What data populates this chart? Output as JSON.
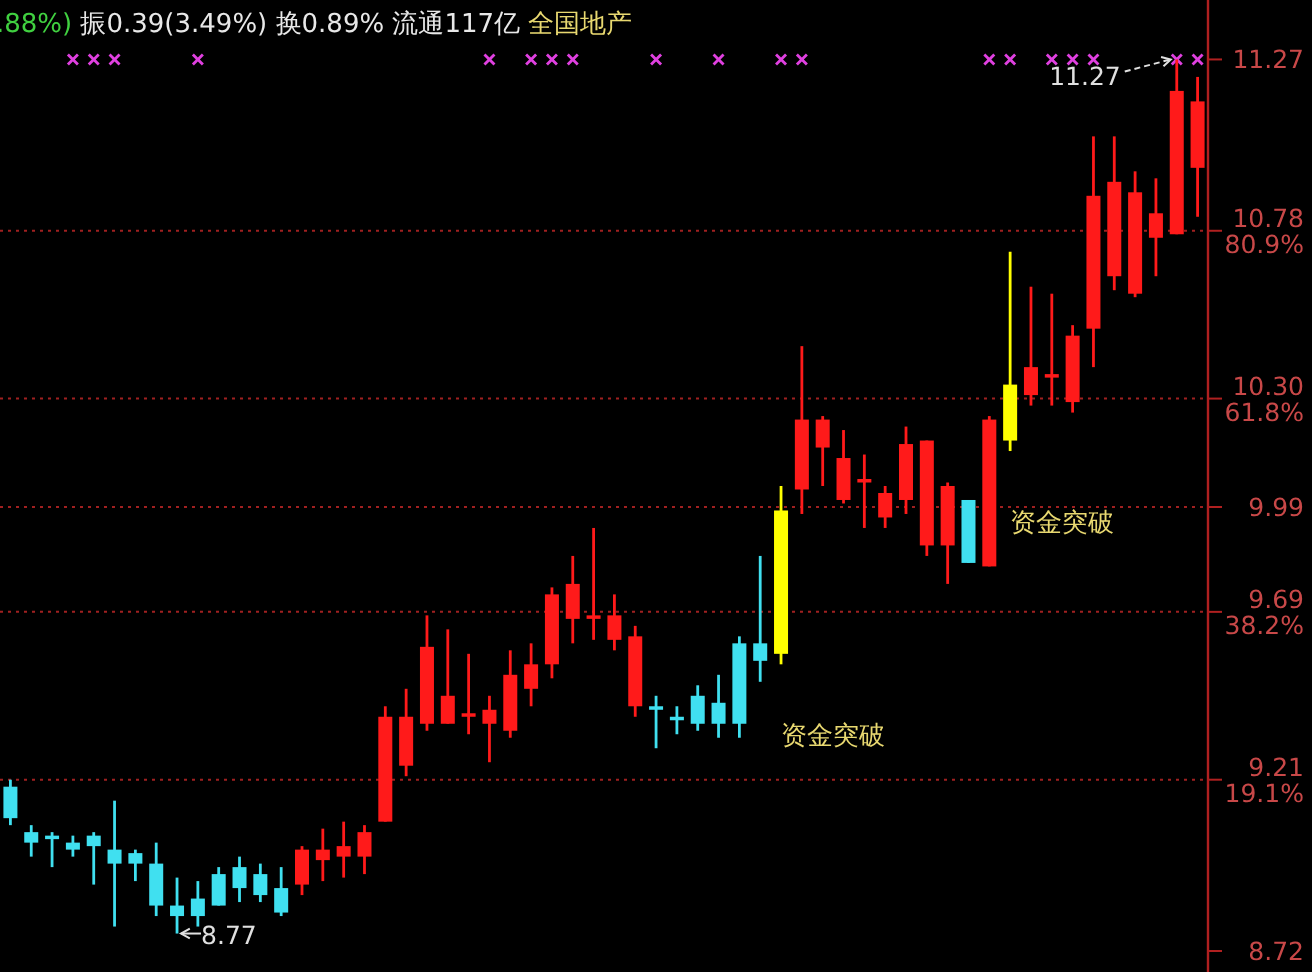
{
  "chart_data": {
    "type": "candlestick",
    "title": ".88%) 振0.39(3.49%) 换0.89% 流通117亿 全国地产",
    "categories": [
      null,
      null,
      null,
      null,
      null,
      null,
      null,
      null,
      null,
      null,
      null,
      null,
      null,
      null,
      null,
      null,
      null,
      null,
      null,
      null,
      null,
      null,
      null,
      null,
      null,
      null,
      null,
      null,
      null,
      null,
      null,
      null,
      null,
      null,
      null,
      null,
      null,
      null,
      null,
      null,
      null,
      null,
      null,
      null,
      null,
      null,
      null,
      null,
      null,
      null,
      null,
      null,
      null,
      null,
      null,
      null,
      null,
      null
    ],
    "ohlc": [
      [
        9.19,
        9.21,
        9.08,
        9.1
      ],
      [
        9.06,
        9.08,
        8.99,
        9.03
      ],
      [
        9.05,
        9.06,
        8.96,
        9.04
      ],
      [
        9.03,
        9.05,
        8.99,
        9.01
      ],
      [
        9.05,
        9.06,
        8.91,
        9.02
      ],
      [
        9.01,
        9.15,
        8.79,
        8.97
      ],
      [
        9.0,
        9.01,
        8.92,
        8.97
      ],
      [
        8.97,
        9.03,
        8.82,
        8.85
      ],
      [
        8.85,
        8.93,
        8.77,
        8.82
      ],
      [
        8.87,
        8.92,
        8.79,
        8.82
      ],
      [
        8.94,
        8.96,
        8.85,
        8.85
      ],
      [
        8.96,
        8.99,
        8.86,
        8.9
      ],
      [
        8.94,
        8.97,
        8.86,
        8.88
      ],
      [
        8.9,
        8.96,
        8.82,
        8.83
      ],
      [
        8.91,
        9.02,
        8.88,
        9.01
      ],
      [
        8.98,
        9.07,
        8.92,
        9.01
      ],
      [
        8.99,
        9.09,
        8.93,
        9.02
      ],
      [
        8.99,
        9.08,
        8.94,
        9.06
      ],
      [
        9.09,
        9.42,
        9.09,
        9.39
      ],
      [
        9.25,
        9.47,
        9.22,
        9.39
      ],
      [
        9.37,
        9.68,
        9.35,
        9.59
      ],
      [
        9.37,
        9.64,
        9.37,
        9.45
      ],
      [
        9.39,
        9.57,
        9.34,
        9.4
      ],
      [
        9.37,
        9.45,
        9.26,
        9.41
      ],
      [
        9.35,
        9.58,
        9.33,
        9.51
      ],
      [
        9.47,
        9.6,
        9.42,
        9.54
      ],
      [
        9.54,
        9.76,
        9.5,
        9.74
      ],
      [
        9.67,
        9.85,
        9.6,
        9.77
      ],
      [
        9.67,
        9.93,
        9.61,
        9.68
      ],
      [
        9.61,
        9.74,
        9.58,
        9.68
      ],
      [
        9.42,
        9.65,
        9.39,
        9.62
      ],
      [
        9.42,
        9.45,
        9.3,
        9.41
      ],
      [
        9.39,
        9.42,
        9.34,
        9.38
      ],
      [
        9.45,
        9.48,
        9.35,
        9.37
      ],
      [
        9.43,
        9.51,
        9.33,
        9.37
      ],
      [
        9.6,
        9.62,
        9.33,
        9.37
      ],
      [
        9.6,
        9.85,
        9.49,
        9.55
      ],
      [
        9.57,
        10.05,
        9.54,
        9.98
      ],
      [
        10.04,
        10.45,
        9.97,
        10.24
      ],
      [
        10.16,
        10.25,
        10.05,
        10.24
      ],
      [
        10.01,
        10.21,
        10.0,
        10.13
      ],
      [
        10.06,
        10.14,
        9.93,
        10.07
      ],
      [
        9.96,
        10.05,
        9.93,
        10.03
      ],
      [
        10.01,
        10.22,
        9.97,
        10.17
      ],
      [
        9.88,
        10.18,
        9.85,
        10.18
      ],
      [
        9.88,
        10.06,
        9.77,
        10.05
      ],
      [
        10.01,
        10.01,
        9.83,
        9.83
      ],
      [
        9.82,
        10.25,
        9.82,
        10.24
      ],
      [
        10.18,
        10.72,
        10.15,
        10.34
      ],
      [
        10.31,
        10.62,
        10.28,
        10.39
      ],
      [
        10.36,
        10.6,
        10.28,
        10.37
      ],
      [
        10.29,
        10.51,
        10.26,
        10.48
      ],
      [
        10.5,
        11.05,
        10.39,
        10.88
      ],
      [
        10.65,
        11.05,
        10.61,
        10.92
      ],
      [
        10.6,
        10.95,
        10.59,
        10.89
      ],
      [
        10.76,
        10.93,
        10.65,
        10.83
      ],
      [
        10.77,
        11.27,
        10.77,
        11.18
      ],
      [
        10.96,
        11.22,
        10.82,
        11.15
      ]
    ],
    "colors": [
      "#40e0f0",
      "#40e0f0",
      "#40e0f0",
      "#40e0f0",
      "#40e0f0",
      "#40e0f0",
      "#40e0f0",
      "#40e0f0",
      "#40e0f0",
      "#40e0f0",
      "#40e0f0",
      "#40e0f0",
      "#40e0f0",
      "#40e0f0",
      "#ff1a1a",
      "#ff1a1a",
      "#ff1a1a",
      "#ff1a1a",
      "#ff1a1a",
      "#ff1a1a",
      "#ff1a1a",
      "#ff1a1a",
      "#ff1a1a",
      "#ff1a1a",
      "#ff1a1a",
      "#ff1a1a",
      "#ff1a1a",
      "#ff1a1a",
      "#ff1a1a",
      "#ff1a1a",
      "#ff1a1a",
      "#40e0f0",
      "#40e0f0",
      "#40e0f0",
      "#40e0f0",
      "#40e0f0",
      "#40e0f0",
      "#ffff00",
      "#ff1a1a",
      "#ff1a1a",
      "#ff1a1a",
      "#ff1a1a",
      "#ff1a1a",
      "#ff1a1a",
      "#ff1a1a",
      "#ff1a1a",
      "#40e0f0",
      "#ff1a1a",
      "#ffff00",
      "#ff1a1a",
      "#ff1a1a",
      "#ff1a1a",
      "#ff1a1a",
      "#ff1a1a",
      "#ff1a1a",
      "#ff1a1a",
      "#ff1a1a",
      "#ff1a1a"
    ],
    "series": [
      {
        "type": "scatter",
        "color": "#e040e0",
        "values": [
          null,
          null,
          null,
          11.27,
          11.27,
          11.27,
          null,
          null,
          null,
          11.27,
          null,
          null,
          null,
          null,
          null,
          null,
          null,
          null,
          null,
          null,
          null,
          null,
          null,
          11.27,
          null,
          11.27,
          11.27,
          11.27,
          null,
          null,
          null,
          11.27,
          null,
          null,
          11.27,
          null,
          null,
          11.27,
          11.27,
          null,
          null,
          null,
          null,
          null,
          null,
          null,
          null,
          11.27,
          11.27,
          null,
          11.27,
          11.27,
          11.27,
          null,
          null,
          null,
          11.27,
          11.27
        ]
      }
    ],
    "marker": "cross",
    "ylim": [
      8.66,
      11.44
    ],
    "yticks": [
      11.27,
      {
        "value": 10.78,
        "label": "10.78\n80.9%"
      },
      {
        "value": 10.3,
        "label": "10.30\n61.8%"
      },
      9.99,
      {
        "value": 9.69,
        "label": "9.69\n38.2%"
      },
      {
        "value": 9.21,
        "label": "9.21\n19.1%"
      },
      8.72
    ],
    "ref_lines": [
      {
        "axis": "y",
        "value": 10.78,
        "color": "#a02020",
        "line_style": "dotted"
      },
      {
        "axis": "y",
        "value": 10.3,
        "color": "#a02020",
        "line_style": "dotted"
      },
      {
        "axis": "y",
        "value": 9.99,
        "color": "#a02020",
        "line_style": "dotted"
      },
      {
        "axis": "y",
        "value": 9.69,
        "color": "#a02020",
        "line_style": "dotted"
      },
      {
        "axis": "y",
        "value": 9.21,
        "color": "#a02020",
        "line_style": "dotted"
      }
    ],
    "annotations": [
      {
        "text": "11.27",
        "y": 11.27
      },
      "8.77",
      "资金突破",
      "资金突破"
    ]
  }
}
